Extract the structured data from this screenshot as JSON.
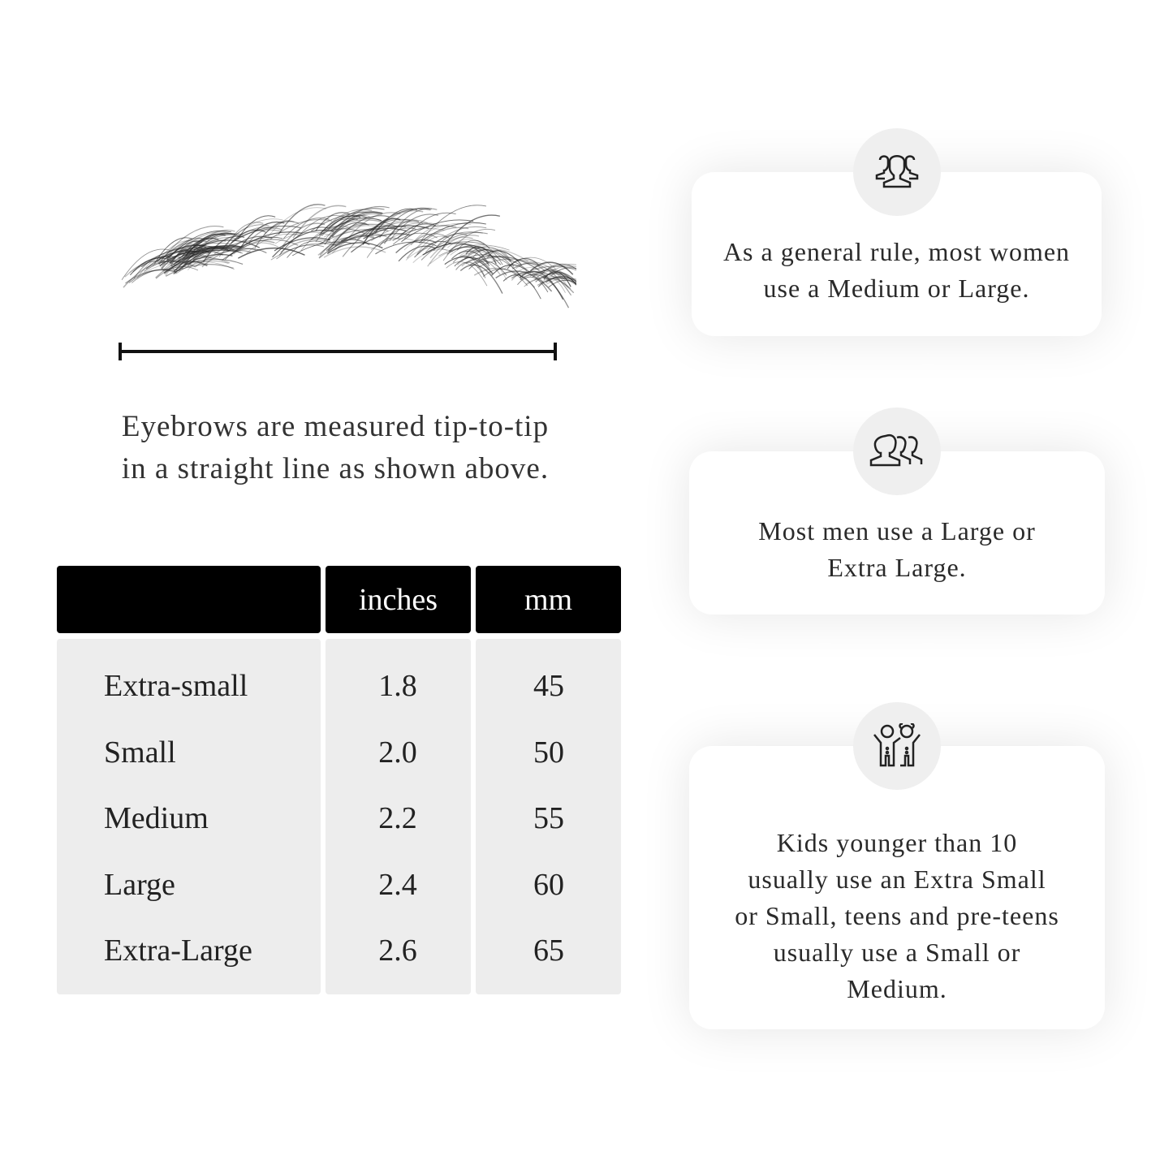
{
  "illustration": {
    "name": "eyebrow-illustration",
    "measure_line": "tip-to-tip"
  },
  "caption": {
    "line1": "Eyebrows are measured tip-to-tip",
    "line2": "in a straight line as shown above."
  },
  "table": {
    "headers": [
      "",
      "inches",
      "mm"
    ],
    "rows": [
      {
        "size": "Extra-small",
        "inches": "1.8",
        "mm": "45"
      },
      {
        "size": "Small",
        "inches": "2.0",
        "mm": "50"
      },
      {
        "size": "Medium",
        "inches": "2.2",
        "mm": "55"
      },
      {
        "size": "Large",
        "inches": "2.4",
        "mm": "60"
      },
      {
        "size": "Extra-Large",
        "inches": "2.6",
        "mm": "65"
      }
    ]
  },
  "cards": [
    {
      "icon": "women-group-icon",
      "text": "As a general rule, most women use a Medium or Large."
    },
    {
      "icon": "men-group-icon",
      "text": "Most men use a Large or Extra Large."
    },
    {
      "icon": "kids-icon",
      "text": "Kids younger than 10 usually use an Extra Small or Small, teens and pre-teens usually use a Small or Medium."
    }
  ],
  "colors": {
    "header_bg": "#000000",
    "body_bg": "#ededed",
    "circle_bg": "#efefef"
  }
}
